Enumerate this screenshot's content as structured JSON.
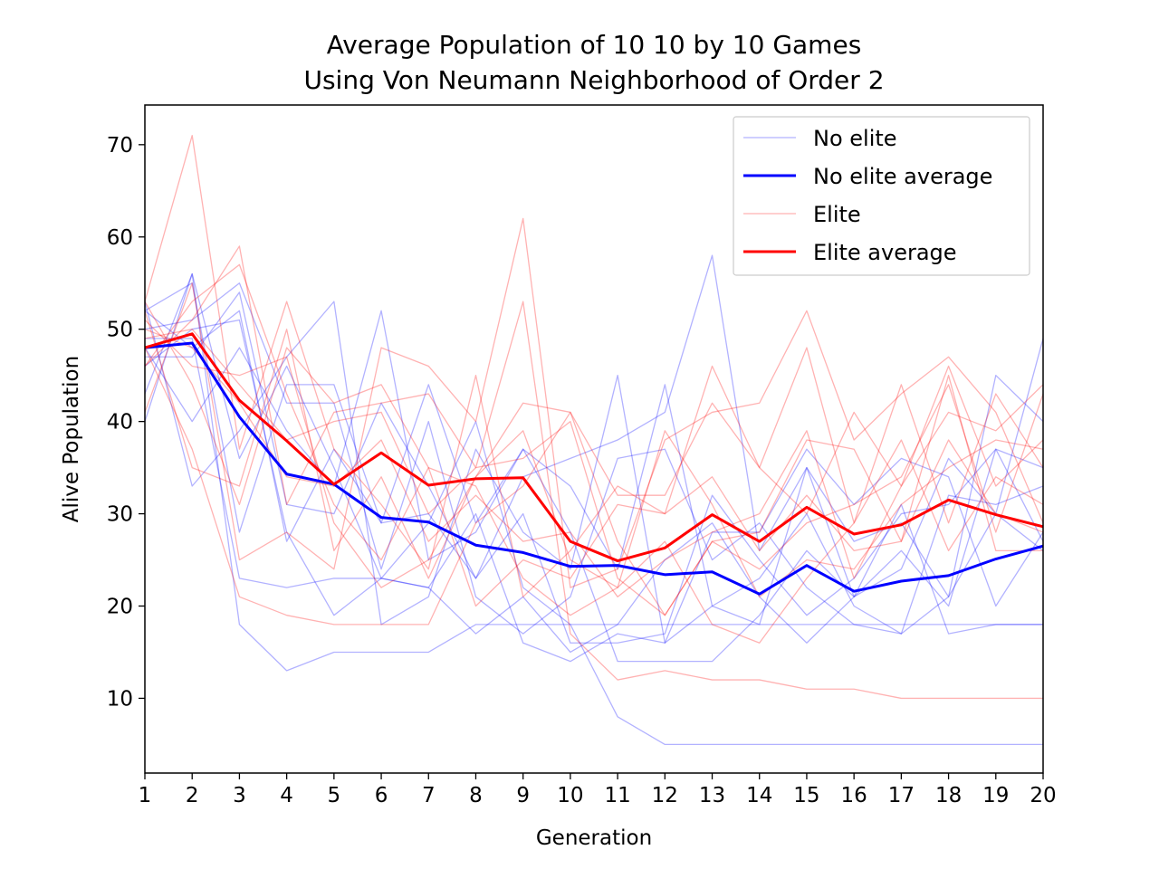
{
  "chart_data": {
    "type": "line",
    "title_lines": [
      "Average Population of 10 10 by 10 Games",
      "Using Von Neumann Neighborhood of Order 2"
    ],
    "xlabel": "Generation",
    "ylabel": "Alive Population",
    "xlim": [
      1,
      20
    ],
    "ylim": [
      1.9,
      74.3
    ],
    "x": [
      1,
      2,
      3,
      4,
      5,
      6,
      7,
      8,
      9,
      10,
      11,
      12,
      13,
      14,
      15,
      16,
      17,
      18,
      19,
      20
    ],
    "x_ticks": [
      "1",
      "2",
      "3",
      "4",
      "5",
      "6",
      "7",
      "8",
      "9",
      "10",
      "11",
      "12",
      "13",
      "14",
      "15",
      "16",
      "17",
      "18",
      "19",
      "20"
    ],
    "y_ticks": [
      10,
      20,
      30,
      40,
      50,
      60,
      70
    ],
    "grid": false,
    "legend_position": "top-right",
    "colors": {
      "no_elite": "#0000ff",
      "elite": "#ff0000"
    },
    "legend": [
      {
        "label": "No elite",
        "color": "#0000ff",
        "style": "thin-faded"
      },
      {
        "label": "No elite average",
        "color": "#0000ff",
        "style": "bold"
      },
      {
        "label": "Elite",
        "color": "#ff0000",
        "style": "thin-faded"
      },
      {
        "label": "Elite average",
        "color": "#ff0000",
        "style": "bold"
      }
    ],
    "series": [
      {
        "name": "No elite average",
        "group": "no_elite",
        "kind": "average",
        "values": [
          48,
          48.5,
          40.5,
          34.3,
          33.2,
          29.6,
          29.1,
          26.6,
          25.8,
          24.3,
          24.4,
          23.4,
          23.7,
          21.3,
          24.4,
          21.6,
          22.7,
          23.3,
          25.1,
          26.5
        ]
      },
      {
        "name": "Elite average",
        "group": "elite",
        "kind": "average",
        "values": [
          48,
          49.5,
          42.3,
          37.9,
          33.2,
          36.6,
          33.1,
          33.8,
          33.9,
          27,
          24.9,
          26.3,
          29.9,
          27,
          30.7,
          27.8,
          28.8,
          31.5,
          29.9,
          28.6
        ]
      }
    ],
    "runs": [
      {
        "group": "no_elite",
        "values": [
          53,
          33,
          39,
          47,
          53,
          18,
          21,
          37,
          28,
          24,
          45,
          16,
          20,
          23,
          30,
          20,
          17,
          21,
          45,
          40
        ]
      },
      {
        "group": "no_elite",
        "values": [
          48,
          40,
          48,
          39,
          33,
          52,
          25,
          28,
          37,
          33,
          24,
          44,
          20,
          18,
          35,
          21,
          24,
          36,
          30,
          49
        ]
      },
      {
        "group": "no_elite",
        "values": [
          46,
          50,
          51,
          28,
          19,
          23,
          22,
          17,
          21,
          15,
          18,
          25,
          29,
          21,
          16,
          21,
          31,
          17,
          18,
          18
        ]
      },
      {
        "group": "no_elite",
        "values": [
          47,
          47,
          54,
          31,
          30,
          42,
          33,
          23,
          34,
          36,
          38,
          41,
          58,
          26,
          35,
          27,
          29,
          21,
          30,
          26
        ]
      },
      {
        "group": "no_elite",
        "values": [
          52,
          55,
          28,
          44,
          44,
          29,
          44,
          29,
          37,
          28,
          14,
          14,
          14,
          19,
          26,
          21,
          26,
          20,
          37,
          27
        ]
      },
      {
        "group": "no_elite",
        "values": [
          40,
          56,
          18,
          13,
          15,
          15,
          15,
          18,
          18,
          18,
          18,
          18,
          18,
          18,
          18,
          18,
          18,
          18,
          18,
          18
        ]
      },
      {
        "group": "no_elite",
        "values": [
          43,
          56,
          36,
          46,
          35,
          23,
          29,
          40,
          22,
          18,
          8,
          5,
          5,
          5,
          5,
          5,
          5,
          5,
          5,
          5
        ]
      },
      {
        "group": "no_elite",
        "values": [
          49,
          49,
          23,
          22,
          23,
          23,
          22,
          30,
          16,
          14,
          17,
          16,
          28,
          28,
          37,
          31,
          36,
          34,
          20,
          28
        ]
      },
      {
        "group": "no_elite",
        "values": [
          52,
          48,
          52,
          27,
          37,
          29,
          30,
          23,
          30,
          16,
          16,
          17,
          32,
          25,
          19,
          23,
          30,
          31,
          37,
          35
        ]
      },
      {
        "group": "no_elite",
        "values": [
          50,
          51,
          55,
          42,
          42,
          24,
          40,
          21,
          17,
          21,
          36,
          37,
          25,
          29,
          22,
          18,
          17,
          32,
          31,
          33
        ]
      },
      {
        "group": "elite",
        "values": [
          53,
          71,
          37,
          53,
          37,
          31,
          24,
          45,
          21,
          26,
          33,
          30,
          46,
          35,
          30,
          41,
          33,
          46,
          33,
          38
        ]
      },
      {
        "group": "elite",
        "values": [
          41,
          55,
          25,
          28,
          24,
          48,
          46,
          40,
          62,
          22,
          24,
          38,
          41,
          42,
          52,
          38,
          43,
          47,
          41,
          29
        ]
      },
      {
        "group": "elite",
        "values": [
          46,
          51,
          59,
          31,
          41,
          42,
          43,
          35,
          53,
          17,
          12,
          13,
          12,
          12,
          11,
          11,
          10,
          10,
          10,
          10
        ]
      },
      {
        "group": "elite",
        "values": [
          52,
          35,
          33,
          50,
          26,
          34,
          23,
          34,
          42,
          41,
          32,
          32,
          42,
          35,
          48,
          29,
          44,
          29,
          43,
          35
        ]
      },
      {
        "group": "elite",
        "values": [
          53,
          44,
          31,
          48,
          42,
          44,
          35,
          20,
          25,
          23,
          31,
          30,
          34,
          26,
          32,
          26,
          27,
          38,
          30,
          28
        ]
      },
      {
        "group": "elite",
        "values": [
          48,
          37,
          21,
          19,
          18,
          18,
          18,
          29,
          33,
          41,
          27,
          19,
          27,
          28,
          38,
          37,
          27,
          45,
          26,
          26
        ]
      },
      {
        "group": "elite",
        "values": [
          46,
          53,
          57,
          43,
          31,
          25,
          35,
          33,
          23,
          19,
          22,
          27,
          18,
          16,
          23,
          29,
          38,
          26,
          34,
          31
        ]
      },
      {
        "group": "elite",
        "values": [
          49,
          50,
          44,
          38,
          40,
          41,
          30,
          35,
          36,
          40,
          23,
          19,
          27,
          24,
          29,
          31,
          34,
          44,
          28,
          43
        ]
      },
      {
        "group": "elite",
        "values": [
          51,
          46,
          45,
          47,
          29,
          22,
          25,
          34,
          39,
          25,
          22,
          39,
          31,
          21,
          25,
          24,
          31,
          35,
          38,
          37
        ]
      },
      {
        "group": "elite",
        "values": [
          50,
          48,
          42,
          34,
          33,
          38,
          27,
          32,
          27,
          28,
          21,
          25,
          28,
          30,
          39,
          23,
          33,
          41,
          39,
          44
        ]
      }
    ]
  }
}
